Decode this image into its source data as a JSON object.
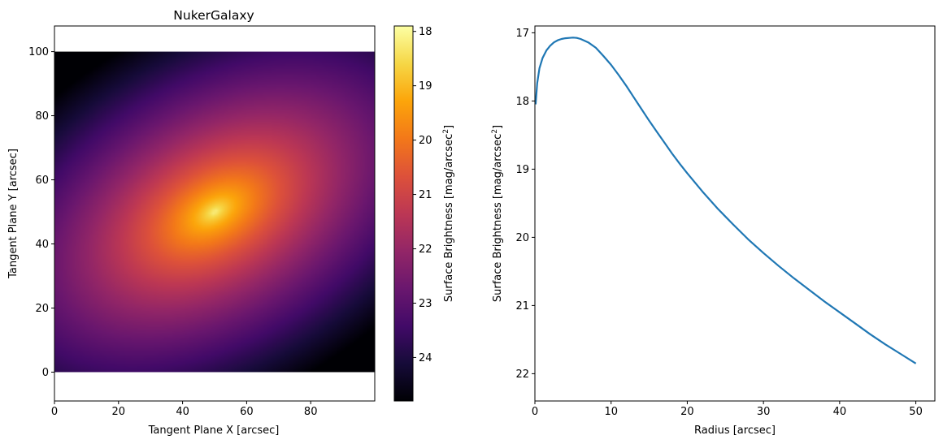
{
  "chart_data": [
    {
      "type": "heatmap",
      "title": "NukerGalaxy",
      "xlabel": "Tangent Plane X [arcsec]",
      "ylabel": "Tangent Plane Y [arcsec]",
      "xlim": [
        0,
        100
      ],
      "ylim": [
        -9,
        108
      ],
      "x_ticks": [
        "0",
        "20",
        "40",
        "60",
        "80"
      ],
      "y_ticks": [
        "0",
        "20",
        "40",
        "60",
        "80",
        "100"
      ],
      "image_extent": {
        "x": [
          0,
          100
        ],
        "y": [
          0,
          100
        ]
      },
      "center": [
        50,
        50
      ],
      "center_value": 17.9,
      "edge_value": 24.8,
      "position_angle_deg": 30,
      "axis_ratio": 0.6,
      "colormap": "inferno",
      "colorbar": {
        "label_main": "Surface Brightness [mag/arcsec",
        "label_sup": "2",
        "label_end": "]",
        "range": [
          17.9,
          24.8
        ],
        "ticks": [
          "18",
          "19",
          "20",
          "21",
          "22",
          "23",
          "24"
        ],
        "inverted": true
      }
    },
    {
      "type": "line",
      "title": "",
      "xlabel": "Radius [arcsec]",
      "ylabel_main": "Surface Brightness [mag/arcsec",
      "ylabel_sup": "2",
      "ylabel_end": "]",
      "xlim": [
        0,
        52.5
      ],
      "ylim": [
        22.4,
        16.9
      ],
      "y_inverted": true,
      "x_ticks": [
        "0",
        "10",
        "20",
        "30",
        "40",
        "50"
      ],
      "y_ticks": [
        "17",
        "18",
        "19",
        "20",
        "21",
        "22"
      ],
      "color": "#1f77b4",
      "series": [
        {
          "x": [
            0.1,
            0.3,
            0.6,
            1,
            1.5,
            2,
            2.5,
            3,
            3.5,
            4,
            4.5,
            5,
            5.5,
            6,
            7,
            8,
            9,
            10,
            11,
            12,
            13,
            14,
            15,
            16,
            17,
            18,
            19,
            20,
            22,
            24,
            26,
            28,
            30,
            32,
            34,
            36,
            38,
            40,
            42,
            44,
            46,
            48,
            50
          ],
          "y": [
            18.05,
            17.74,
            17.52,
            17.37,
            17.26,
            17.19,
            17.14,
            17.11,
            17.09,
            17.08,
            17.075,
            17.07,
            17.075,
            17.09,
            17.14,
            17.22,
            17.34,
            17.47,
            17.62,
            17.78,
            17.95,
            18.12,
            18.29,
            18.45,
            18.61,
            18.77,
            18.92,
            19.06,
            19.33,
            19.58,
            19.81,
            20.03,
            20.23,
            20.42,
            20.6,
            20.77,
            20.94,
            21.1,
            21.26,
            21.42,
            21.57,
            21.71,
            21.85
          ]
        }
      ]
    }
  ]
}
